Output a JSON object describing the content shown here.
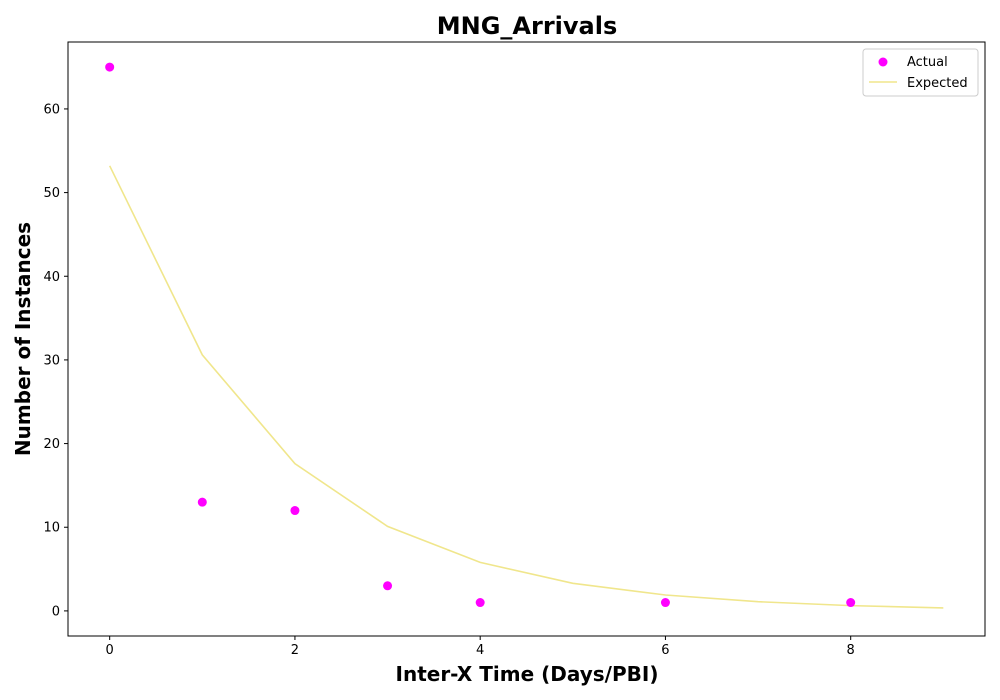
{
  "chart_data": {
    "type": "scatter",
    "title": "MNG_Arrivals",
    "xlabel": "Inter-X Time (Days/PBI)",
    "ylabel": "Number of Instances",
    "xlim": [
      -0.45,
      9.45
    ],
    "ylim": [
      -3,
      68
    ],
    "xticks": [
      0,
      2,
      4,
      6,
      8
    ],
    "yticks": [
      0,
      10,
      20,
      30,
      40,
      50,
      60
    ],
    "grid": false,
    "legend_position": "top-right",
    "series": [
      {
        "name": "Actual",
        "kind": "scatter",
        "color": "#ff00ff",
        "points": [
          {
            "x": 0,
            "y": 65
          },
          {
            "x": 1,
            "y": 13
          },
          {
            "x": 2,
            "y": 12
          },
          {
            "x": 3,
            "y": 3
          },
          {
            "x": 4,
            "y": 1
          },
          {
            "x": 6,
            "y": 1
          },
          {
            "x": 8,
            "y": 1
          }
        ]
      },
      {
        "name": "Expected",
        "kind": "line",
        "color": "#f0e68c",
        "points": [
          {
            "x": 0,
            "y": 53.2
          },
          {
            "x": 1,
            "y": 30.6
          },
          {
            "x": 2,
            "y": 17.6
          },
          {
            "x": 3,
            "y": 10.1
          },
          {
            "x": 4,
            "y": 5.8
          },
          {
            "x": 5,
            "y": 3.3
          },
          {
            "x": 6,
            "y": 1.9
          },
          {
            "x": 7,
            "y": 1.1
          },
          {
            "x": 8,
            "y": 0.63
          },
          {
            "x": 9,
            "y": 0.36
          }
        ]
      }
    ]
  }
}
